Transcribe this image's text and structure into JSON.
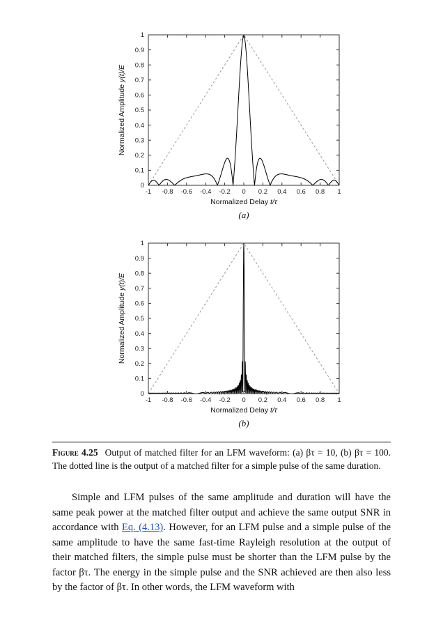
{
  "figure": {
    "caption": {
      "label": "Figure 4.25",
      "text": "Output of matched filter for an LFM waveform: (a) βτ = 10, (b) βτ = 100. The dotted line is the output of a matched filter for a simple pulse of the same duration."
    }
  },
  "chart_data": [
    {
      "type": "line",
      "sublabel": "(a)",
      "xlabel": {
        "text": "Normalized Delay",
        "math": "t/τ"
      },
      "ylabel": {
        "text": "Normalized Amplitude",
        "math": "y(t)/E"
      },
      "xlim": [
        -1,
        1
      ],
      "ylim": [
        0,
        1
      ],
      "xticks": [
        "-1",
        "-0.8",
        "-0.6",
        "-0.4",
        "-0.2",
        "0",
        "0.2",
        "0.4",
        "0.6",
        "0.8",
        "1"
      ],
      "yticks": [
        "0",
        "0.1",
        "0.2",
        "0.3",
        "0.4",
        "0.5",
        "0.6",
        "0.7",
        "0.8",
        "0.9",
        "1"
      ],
      "grid": false,
      "legend": "none",
      "series": [
        {
          "name": "lfm-matched-filter-output",
          "model": "lfm_matched_filter",
          "formula": "|(1-|t|) * sinc(pi * beta_tau * t * (1-|t|))|",
          "beta_tau": 10,
          "peak": [
            0,
            1
          ],
          "first_null_abs_t": 0.113,
          "peak_sidelobe_level": 0.18,
          "line": "solid",
          "color": "#000000"
        },
        {
          "name": "simple-pulse-matched-filter-output",
          "points": [
            [
              -1,
              0
            ],
            [
              0,
              1
            ],
            [
              1,
              0
            ]
          ],
          "line": "dashed",
          "color": "#999999"
        }
      ]
    },
    {
      "type": "line",
      "sublabel": "(b)",
      "xlabel": {
        "text": "Normalized Delay",
        "math": "t/τ"
      },
      "ylabel": {
        "text": "Normalized Amplitude",
        "math": "y(t)/E"
      },
      "xlim": [
        -1,
        1
      ],
      "ylim": [
        0,
        1
      ],
      "xticks": [
        "-1",
        "-0.8",
        "-0.6",
        "-0.4",
        "-0.2",
        "0",
        "0.2",
        "0.4",
        "0.6",
        "0.8",
        "1"
      ],
      "yticks": [
        "0",
        "0.1",
        "0.2",
        "0.3",
        "0.4",
        "0.5",
        "0.6",
        "0.7",
        "0.8",
        "0.9",
        "1"
      ],
      "grid": false,
      "legend": "none",
      "series": [
        {
          "name": "lfm-matched-filter-output",
          "model": "lfm_matched_filter",
          "formula": "|(1-|t|) * sinc(pi * beta_tau * t * (1-|t|))|",
          "beta_tau": 100,
          "peak": [
            0,
            1
          ],
          "first_null_abs_t": 0.0101,
          "peak_sidelobe_level": 0.21,
          "line": "solid",
          "color": "#000000"
        },
        {
          "name": "simple-pulse-matched-filter-output",
          "points": [
            [
              -1,
              0
            ],
            [
              0,
              1
            ],
            [
              1,
              0
            ]
          ],
          "line": "dashed",
          "color": "#999999"
        }
      ]
    }
  ],
  "body": {
    "before_link": "Simple and LFM pulses of the same amplitude and duration will have the same peak power at the matched filter output and achieve the same output SNR in accordance with ",
    "link_text": "Eq. (4.13)",
    "after_link": ". However, for an LFM pulse and a simple pulse of the same amplitude to have the same fast-time Rayleigh resolution at the output of their matched filters, the simple pulse must be shorter than the LFM pulse by the factor βτ. The energy in the simple pulse and the SNR achieved are then also less by the factor of βτ. In other words, the LFM waveform with"
  },
  "colors": {
    "curve": "#000000",
    "dashed_line": "#999999",
    "axes": "#333333",
    "link": "#1155cc"
  }
}
